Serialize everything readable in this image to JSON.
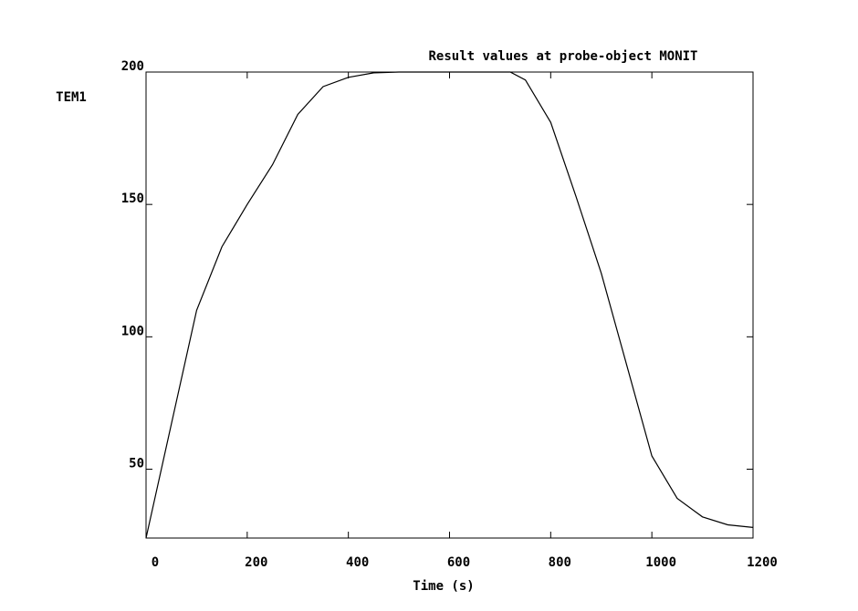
{
  "chart_data": {
    "type": "line",
    "title": "Result values at probe-object MONIT",
    "y_label": "TEM1",
    "x_label": "Time (s)",
    "x": [
      0,
      50,
      100,
      150,
      200,
      250,
      300,
      350,
      400,
      450,
      500,
      550,
      600,
      650,
      700,
      720,
      750,
      800,
      850,
      900,
      950,
      1000,
      1050,
      1100,
      1150,
      1200
    ],
    "series": [
      {
        "color": "#000000",
        "values": [
          24,
          67,
          110,
          134,
          150,
          165,
          184,
          194.5,
          198,
          199.7,
          200,
          200,
          200,
          200,
          200,
          200,
          197,
          181,
          153,
          124,
          89.5,
          55,
          39,
          32,
          29,
          28
        ]
      }
    ],
    "xlim": [
      0,
      1200
    ],
    "xticks": [
      0,
      200,
      400,
      600,
      800,
      1000,
      1200
    ],
    "ylim": [
      24,
      200
    ],
    "yticks": [
      50,
      100,
      150,
      200
    ]
  }
}
